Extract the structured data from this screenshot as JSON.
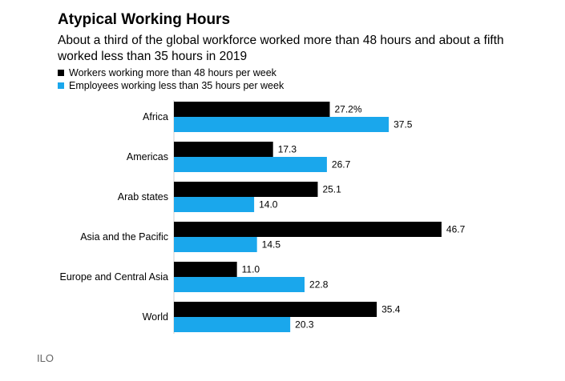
{
  "chart_data": {
    "type": "bar",
    "orientation": "horizontal",
    "title": "Atypical Working Hours",
    "subtitle": "About a third of the global workforce worked more than 48 hours and about a fifth worked less than 35 hours in 2019",
    "categories": [
      "Africa",
      "Americas",
      "Arab states",
      "Asia and the Pacific",
      "Europe and Central Asia",
      "World"
    ],
    "series": [
      {
        "name": "Workers working more than 48 hours per week",
        "color": "#000000",
        "values": [
          27.2,
          17.3,
          25.1,
          46.7,
          11.0,
          35.4
        ],
        "labels": [
          "27.2%",
          "17.3",
          "25.1",
          "46.7",
          "11.0",
          "35.4"
        ]
      },
      {
        "name": "Employees working less than 35 hours per week",
        "color": "#1aa7ec",
        "values": [
          37.5,
          26.7,
          14.0,
          14.5,
          22.8,
          20.3
        ],
        "labels": [
          "37.5",
          "26.7",
          "14.0",
          "14.5",
          "22.8",
          "20.3"
        ]
      }
    ],
    "xlim": [
      0,
      50
    ],
    "legend_position": "top-left",
    "grid": false
  },
  "source": "ILO"
}
